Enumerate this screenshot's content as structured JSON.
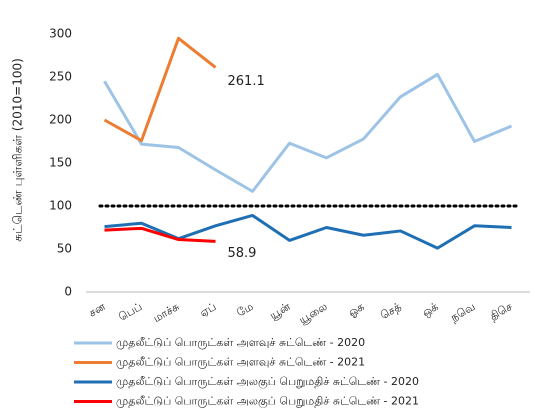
{
  "chart_data": {
    "type": "line",
    "y_label": "சுட்டெண் புள்ளிகள்  (2010=100)",
    "categories": [
      "சன",
      "பெப்",
      "மாச்சு",
      "ஏப்",
      "மே",
      "யூன்",
      "யூலை",
      "ஓக",
      "செத்",
      "ஒக்",
      "நவெ",
      "திசெ"
    ],
    "series": [
      {
        "name": "முதலீட்டுப் பொருட்கள் அளவுச் சுட்டெண் - 2020",
        "color": "#9dc3e6",
        "values": [
          245,
          172,
          168,
          142,
          117,
          173,
          156,
          178,
          227,
          253,
          175,
          193
        ]
      },
      {
        "name": "முதலீட்டுப் பொருட்கள் அளவுச் சுட்டெண் - 2021",
        "color": "#ed7d31",
        "values": [
          200,
          176,
          295,
          261.1,
          null,
          null,
          null,
          null,
          null,
          null,
          null,
          null
        ]
      },
      {
        "name": "முதலீட்டுப் பொருட்கள் அலகுப் பெறுமதிச் சுட்டெண் - 2020",
        "color": "#1f6fb4",
        "values": [
          76,
          80,
          62,
          77,
          89,
          60,
          75,
          66,
          71,
          51,
          77,
          75
        ]
      },
      {
        "name": "முதலீட்டுப் பொருட்கள் அலகுப் பெறுமதிச் சுட்டெண் - 2021",
        "color": "#ff0000",
        "values": [
          72,
          74,
          61,
          58.9,
          null,
          null,
          null,
          null,
          null,
          null,
          null,
          null
        ]
      }
    ],
    "reference_line": 100,
    "ylim": [
      0,
      300
    ],
    "yticks": [
      0,
      50,
      100,
      150,
      200,
      250,
      300
    ]
  }
}
